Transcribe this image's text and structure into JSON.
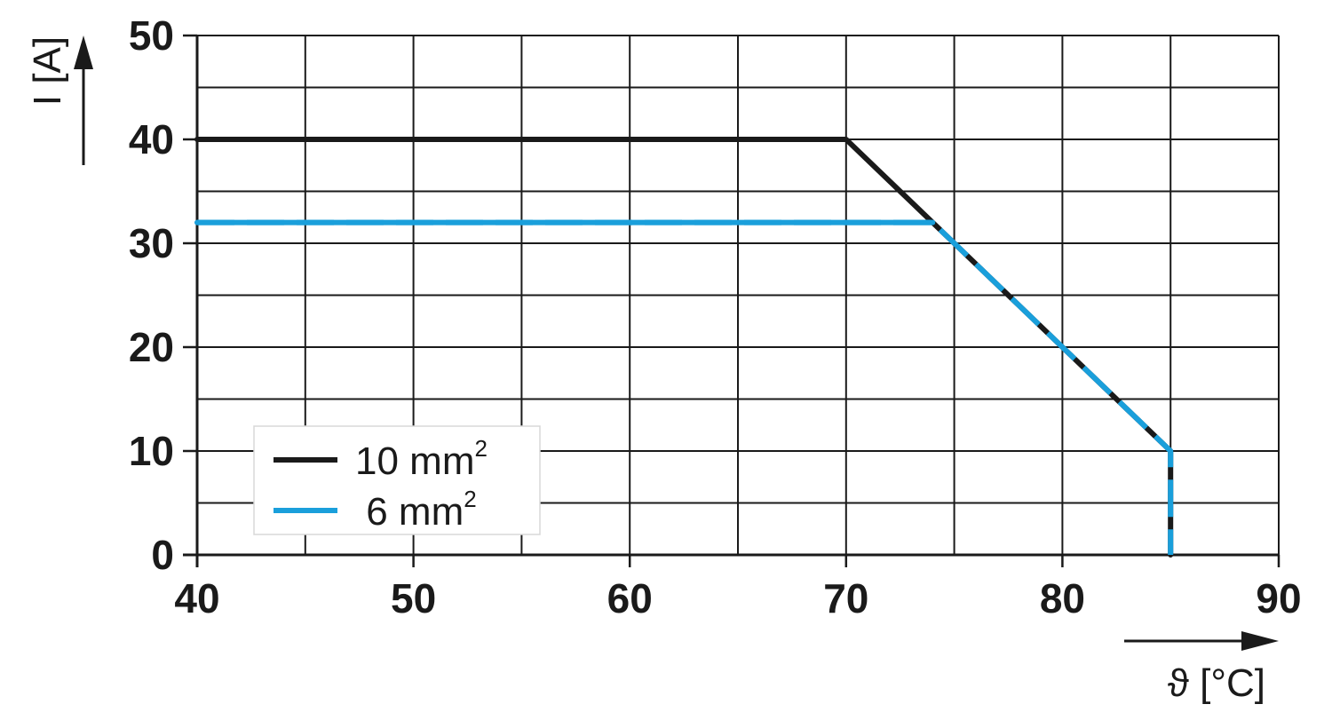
{
  "chart_data": {
    "type": "line",
    "xlabel": "ϑ [°C]",
    "ylabel": "I [A]",
    "xlim": [
      40,
      90
    ],
    "ylim": [
      0,
      50
    ],
    "x_ticks": [
      40,
      50,
      60,
      70,
      80,
      90
    ],
    "y_ticks": [
      0,
      10,
      20,
      30,
      40,
      50
    ],
    "x_tick_labels": [
      "40",
      "50",
      "60",
      "70",
      "80",
      "90"
    ],
    "y_tick_labels": [
      "0",
      "10",
      "20",
      "30",
      "40",
      "50"
    ],
    "x_minor_step": 5,
    "y_minor_step": 5,
    "grid": true,
    "legend_position": "bottom-left",
    "series": [
      {
        "name": "10 mm",
        "name_superscript": "2",
        "color": "#1a1a1a",
        "x": [
          40,
          70,
          85,
          85
        ],
        "y": [
          40,
          40,
          10,
          0
        ]
      },
      {
        "name": " 6 mm",
        "name_superscript": "2",
        "color": "#1a9fdb",
        "x": [
          40,
          74,
          85,
          85
        ],
        "y": [
          32,
          32,
          10,
          0
        ]
      }
    ]
  }
}
